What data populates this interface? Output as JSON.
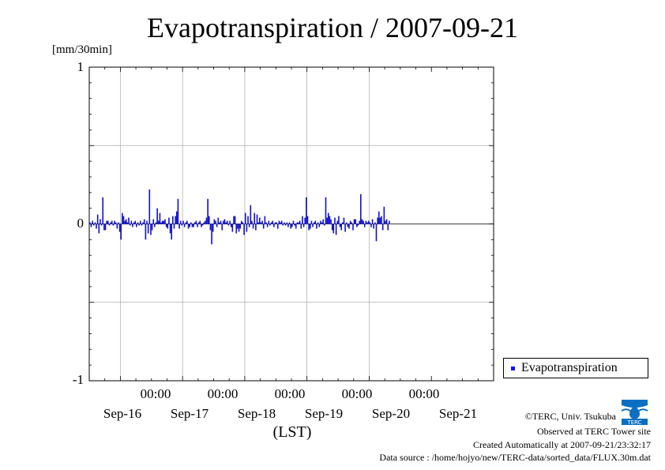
{
  "title": "Evapotranspiration / 2007-09-21",
  "units": "[mm/30min]",
  "legend": {
    "label": "Evapotranspiration"
  },
  "xlabel": "(LST)",
  "footer": {
    "credit": "©TERC, Univ. Tsukuba",
    "site": "Observed at TERC Tower site",
    "created": "Created Automatically at 2007-09-21/23:32:17",
    "source": "Data source : /home/hojyo/new/TERC-data/sorted_data/FLUX.30m.dat"
  },
  "logo": {
    "icon": "terc-logo",
    "text": "TERC"
  },
  "colors": {
    "series": "#1010cc",
    "grid": "#aaaaaa",
    "legend_marker": "#1010ff"
  },
  "chart_data": {
    "type": "bar",
    "title": "Evapotranspiration / 2007-09-21",
    "ylabel": "[mm/30min]",
    "xlabel": "(LST)",
    "ylim": [
      -1,
      1
    ],
    "yticks": [
      -1,
      0,
      1
    ],
    "xlim_days": [
      "Sep-15 12:00",
      "Sep-21 24:00"
    ],
    "time_ticks": [
      "00:00",
      "00:00",
      "00:00",
      "00:00",
      "00:00"
    ],
    "date_labels": [
      "Sep-16",
      "Sep-17",
      "Sep-18",
      "Sep-19",
      "Sep-20",
      "Sep-21"
    ],
    "grid": true,
    "legend_position": "bottom-right outside",
    "series": [
      {
        "name": "Evapotranspiration",
        "interval": "30min",
        "start": "2007-09-15 12:00",
        "values": [
          0.01,
          -0.02,
          0.02,
          -0.01,
          0.01,
          -0.03,
          0.06,
          -0.06,
          0.03,
          -0.01,
          0.17,
          -0.04,
          -0.04,
          0.02,
          0.02,
          -0.01,
          0.01,
          0.02,
          -0.01,
          0.02,
          0.01,
          -0.03,
          0.01,
          -0.05,
          -0.1,
          0.07,
          0.05,
          0.02,
          0.03,
          0.01,
          0.04,
          -0.01,
          0.02,
          -0.02,
          0.01,
          0.02,
          -0.02,
          0.01,
          -0.01,
          0.02,
          -0.01,
          0.01,
          0.03,
          -0.1,
          0.02,
          -0.06,
          0.22,
          -0.07,
          -0.04,
          0.03,
          -0.02,
          0.01,
          0.1,
          0.02,
          0.07,
          0.01,
          0.02,
          0.02,
          0.03,
          -0.02,
          -0.03,
          0.04,
          -0.06,
          -0.1,
          0.05,
          -0.03,
          0.05,
          0.08,
          0.16,
          -0.03,
          0.02,
          -0.01,
          0.02,
          -0.02,
          0.01,
          0.02,
          -0.03,
          -0.02,
          0.01,
          -0.02,
          -0.02,
          0.01,
          0.02,
          -0.02,
          0.01,
          0.02,
          -0.02,
          -0.01,
          0.01,
          0.02,
          0.04,
          0.16,
          0.05,
          -0.04,
          -0.13,
          -0.05,
          0.03,
          0.02,
          -0.02,
          0.04,
          0.01,
          0.02,
          -0.04,
          0.02,
          0.03,
          0.01,
          0.02,
          -0.01,
          0.02,
          -0.02,
          -0.05,
          0.05,
          0.05,
          -0.06,
          -0.03,
          -0.05,
          -0.03,
          0.02,
          0.01,
          -0.07,
          0.07,
          -0.05,
          0.05,
          -0.02,
          0.12,
          0.02,
          -0.03,
          0.07,
          -0.04,
          0.06,
          0.01,
          0.04,
          0.01,
          0.02,
          -0.03,
          0.05,
          0.01,
          -0.02,
          0.02,
          -0.01,
          0.01,
          0.02,
          -0.02,
          0.01,
          0.01,
          -0.03,
          0.02,
          0.01,
          0.02,
          -0.01,
          0.01,
          -0.01,
          0.01,
          -0.02,
          0.01,
          -0.03,
          -0.02,
          0.02,
          -0.01,
          -0.03,
          0.01,
          0.01,
          0.02,
          -0.03,
          0.05,
          -0.02,
          0.04,
          0.17,
          0.05,
          -0.04,
          -0.03,
          0.02,
          -0.02,
          0.01,
          0.02,
          -0.03,
          0.01,
          -0.02,
          0.02,
          0.01,
          0.03,
          -0.01,
          0.17,
          0.04,
          0.07,
          0.05,
          0.03,
          -0.04,
          -0.06,
          0.04,
          -0.07,
          0.02,
          0.05,
          -0.02,
          -0.04,
          0.01,
          0.04,
          -0.05,
          0.01,
          -0.02,
          -0.03,
          0.02,
          0.01,
          -0.04,
          0.03,
          0.03,
          -0.02,
          -0.01,
          0.02,
          0.19,
          0.03,
          0.02,
          -0.02,
          0.02,
          0.01,
          0.02,
          0.01,
          -0.02,
          0.03,
          -0.03,
          0.01,
          -0.11,
          0.04,
          0.08,
          0.04,
          0.05,
          -0.04,
          0.11,
          0.02,
          0.03,
          -0.04,
          0.02
        ]
      }
    ]
  }
}
